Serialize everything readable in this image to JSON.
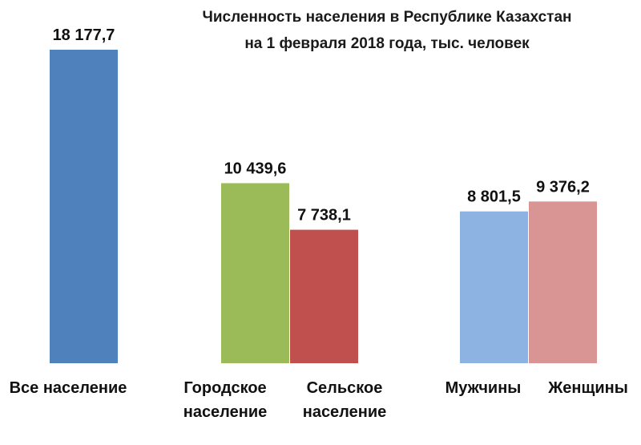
{
  "chart_data": {
    "type": "bar",
    "title_lines": [
      "Численность населения  в Республике  Казахстан",
      "на 1 февраля 2018 года, тыс. человек"
    ],
    "xlabel": "",
    "ylabel": "",
    "ylim": [
      0,
      18177.7
    ],
    "grid": false,
    "legend": "none",
    "bars": [
      {
        "label": "18 177,7",
        "value": 18177.7,
        "color": "#4F81BD",
        "category_lines": [
          "Все население"
        ]
      },
      {
        "label": "10 439,6",
        "value": 10439.6,
        "color": "#9BBB59",
        "category_lines": [
          "Городское",
          "население"
        ]
      },
      {
        "label": "7 738,1",
        "value": 7738.1,
        "color": "#C0504D",
        "category_lines": [
          "Сельское",
          "население"
        ]
      },
      {
        "label": "8 801,5",
        "value": 8801.5,
        "color": "#8DB3E2",
        "category_lines": [
          "Мужчины"
        ]
      },
      {
        "label": "9 376,2",
        "value": 9376.2,
        "color": "#D99594",
        "category_lines": [
          "Женщины"
        ]
      }
    ]
  }
}
